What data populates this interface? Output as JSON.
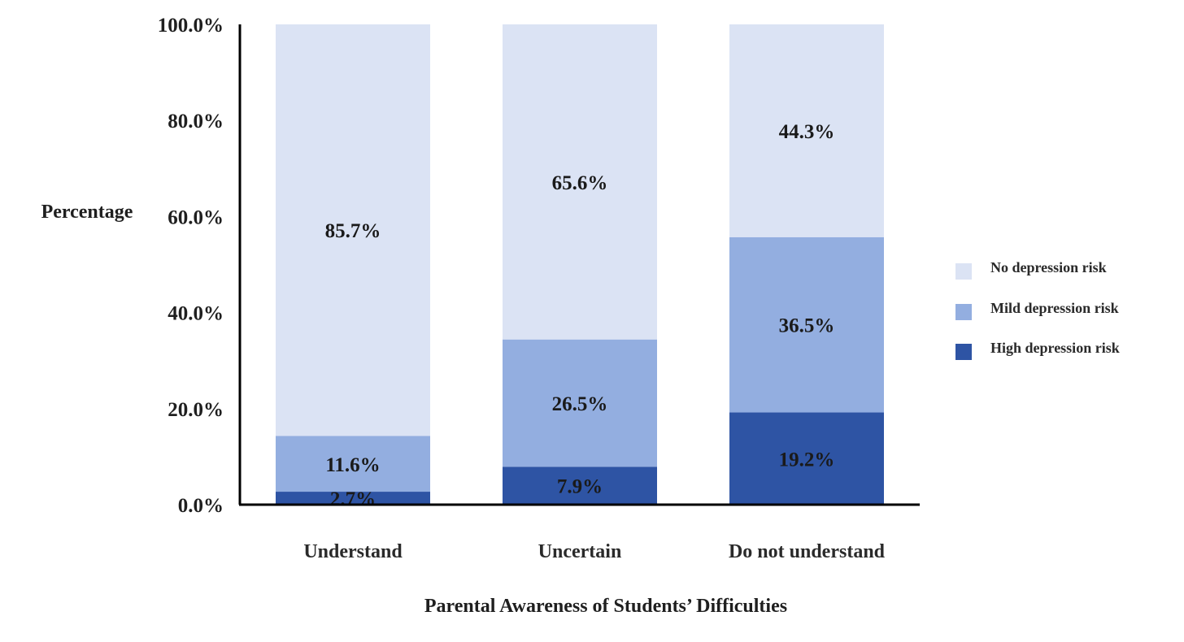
{
  "chart_data": {
    "type": "bar",
    "stacked": true,
    "xlabel": "Parental Awareness of Students’ Difficulties",
    "ylabel": "Percentage",
    "ylim": [
      0,
      100
    ],
    "yticks": [
      0,
      20,
      40,
      60,
      80,
      100
    ],
    "ytick_labels": [
      "0.0%",
      "20.0%",
      "40.0%",
      "60.0%",
      "80.0%",
      "100.0%"
    ],
    "categories": [
      "Understand",
      "Uncertain",
      "Do not understand"
    ],
    "series": [
      {
        "name": "High depression risk",
        "values": [
          2.7,
          7.9,
          19.2
        ],
        "labels": [
          "2.7%",
          "7.9%",
          "19.2%"
        ],
        "color": "#2e54a4"
      },
      {
        "name": "Mild depression risk",
        "values": [
          11.6,
          26.5,
          36.5
        ],
        "labels": [
          "11.6%",
          "26.5%",
          "36.5%"
        ],
        "color": "#93aee0"
      },
      {
        "name": "No depression risk",
        "values": [
          85.7,
          65.6,
          44.3
        ],
        "labels": [
          "85.7%",
          "65.6%",
          "44.3%"
        ],
        "color": "#dbe3f4"
      }
    ],
    "legend": {
      "position": "right",
      "order": [
        "No depression risk",
        "Mild depression risk",
        "High depression risk"
      ]
    },
    "grid": false
  }
}
